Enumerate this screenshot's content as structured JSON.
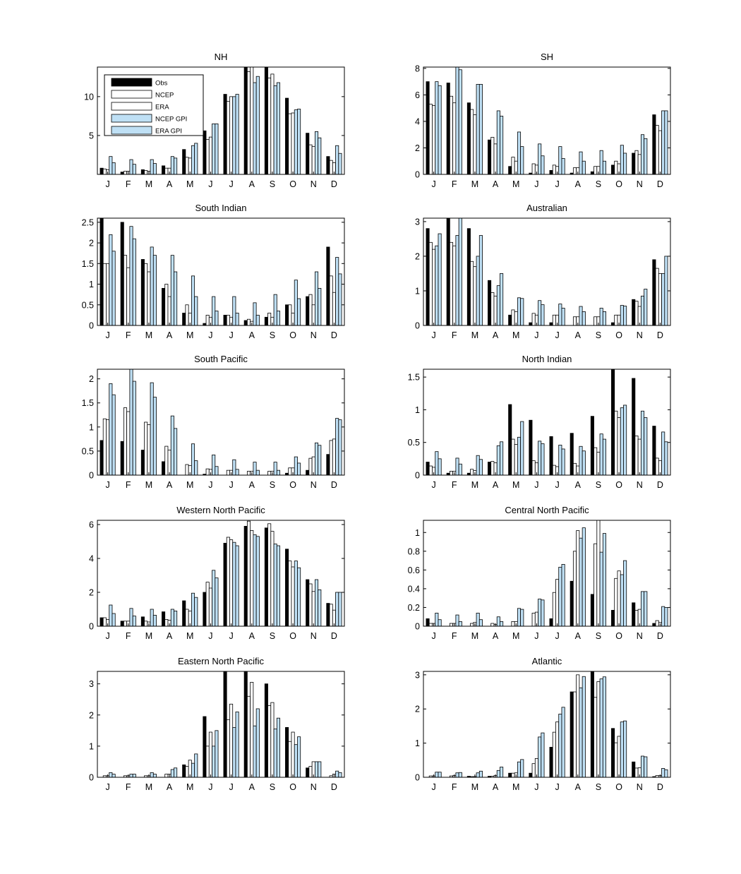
{
  "legend": [
    "Obs",
    "NCEP",
    "ERA",
    "NCEP GPI",
    "ERA GPI"
  ],
  "series_colors": [
    "#000000",
    "#ffffff",
    "#ffffff",
    "#bfe0f5",
    "#bfe0f5"
  ],
  "chart_data": [
    {
      "type": "bar",
      "title": "NH",
      "categories": [
        "J",
        "F",
        "M",
        "A",
        "M",
        "J",
        "J",
        "A",
        "S",
        "O",
        "N",
        "D"
      ],
      "ylim": [
        0,
        13.8
      ],
      "yticks": [
        5,
        10
      ],
      "grid": false,
      "legend_position": "top-left",
      "series": [
        {
          "name": "Obs",
          "values": [
            0.8,
            0.3,
            0.6,
            1.1,
            3.2,
            5.6,
            10.3,
            14.0,
            14.0,
            9.8,
            5.3,
            2.3
          ]
        },
        {
          "name": "NCEP",
          "values": [
            0.7,
            0.4,
            0.5,
            0.8,
            2.2,
            4.5,
            9.4,
            13.2,
            12.4,
            7.8,
            3.8,
            1.8
          ]
        },
        {
          "name": "ERA",
          "values": [
            0.6,
            0.4,
            0.4,
            0.8,
            2.1,
            4.8,
            10.0,
            14.0,
            12.9,
            7.9,
            3.6,
            1.5
          ]
        },
        {
          "name": "NCEP GPI",
          "values": [
            2.3,
            1.9,
            1.9,
            2.3,
            3.7,
            6.5,
            10.0,
            11.8,
            11.4,
            8.3,
            5.5,
            3.7
          ]
        },
        {
          "name": "ERA GPI",
          "values": [
            1.5,
            1.3,
            1.4,
            2.1,
            4.0,
            6.5,
            10.3,
            12.6,
            11.8,
            8.4,
            4.7,
            2.7
          ]
        }
      ]
    },
    {
      "type": "bar",
      "title": "SH",
      "categories": [
        "J",
        "F",
        "M",
        "A",
        "M",
        "J",
        "J",
        "A",
        "S",
        "O",
        "N",
        "D"
      ],
      "ylim": [
        0,
        8.1
      ],
      "yticks": [
        0,
        2,
        4,
        6,
        8
      ],
      "grid": false,
      "series": [
        {
          "name": "Obs",
          "values": [
            7.0,
            6.9,
            5.4,
            2.6,
            0.6,
            0.1,
            0.3,
            0.1,
            0.2,
            0.7,
            1.6,
            4.5
          ]
        },
        {
          "name": "NCEP",
          "values": [
            5.3,
            5.9,
            4.9,
            2.8,
            1.3,
            0.8,
            0.7,
            0.5,
            0.6,
            1.0,
            1.8,
            3.7
          ]
        },
        {
          "name": "ERA",
          "values": [
            5.2,
            5.4,
            4.5,
            2.3,
            1.0,
            0.7,
            0.6,
            0.5,
            0.6,
            0.8,
            1.5,
            3.3
          ]
        },
        {
          "name": "NCEP GPI",
          "values": [
            7.0,
            8.1,
            6.8,
            4.8,
            3.2,
            2.3,
            2.1,
            1.7,
            1.8,
            2.2,
            3.0,
            4.8
          ]
        },
        {
          "name": "ERA GPI",
          "values": [
            6.7,
            7.9,
            6.8,
            4.4,
            2.1,
            1.4,
            1.2,
            1.0,
            1.0,
            1.6,
            2.7,
            4.8
          ]
        }
      ]
    },
    {
      "type": "bar",
      "title": "South Indian",
      "categories": [
        "J",
        "F",
        "M",
        "A",
        "M",
        "J",
        "J",
        "A",
        "S",
        "O",
        "N",
        "D"
      ],
      "ylim": [
        0,
        2.6
      ],
      "yticks": [
        0,
        0.5,
        1,
        1.5,
        2,
        2.5
      ],
      "grid": false,
      "series": [
        {
          "name": "Obs",
          "values": [
            2.6,
            2.5,
            1.6,
            0.9,
            0.3,
            0.05,
            0.25,
            0.12,
            0.2,
            0.5,
            0.7,
            1.9
          ]
        },
        {
          "name": "NCEP",
          "values": [
            1.5,
            1.7,
            1.5,
            1.0,
            0.5,
            0.25,
            0.25,
            0.15,
            0.3,
            0.5,
            0.75,
            1.2
          ]
        },
        {
          "name": "ERA",
          "values": [
            1.5,
            1.4,
            1.3,
            0.7,
            0.3,
            0.2,
            0.2,
            0.1,
            0.2,
            0.3,
            0.5,
            0.8
          ]
        },
        {
          "name": "NCEP GPI",
          "values": [
            2.2,
            2.4,
            1.9,
            1.7,
            1.2,
            0.7,
            0.7,
            0.55,
            0.75,
            1.1,
            1.3,
            1.65
          ]
        },
        {
          "name": "ERA GPI",
          "values": [
            1.8,
            2.1,
            1.7,
            1.3,
            0.7,
            0.35,
            0.3,
            0.25,
            0.35,
            0.65,
            0.9,
            1.25
          ]
        }
      ]
    },
    {
      "type": "bar",
      "title": "Australian",
      "categories": [
        "J",
        "F",
        "M",
        "A",
        "M",
        "J",
        "J",
        "A",
        "S",
        "O",
        "N",
        "D"
      ],
      "ylim": [
        0,
        3.1
      ],
      "yticks": [
        0,
        1,
        2,
        3
      ],
      "grid": false,
      "series": [
        {
          "name": "Obs",
          "values": [
            2.8,
            3.1,
            2.8,
            1.3,
            0.3,
            0.08,
            0.08,
            0.0,
            0.0,
            0.08,
            0.75,
            1.9
          ]
        },
        {
          "name": "NCEP",
          "values": [
            2.4,
            2.4,
            1.85,
            0.95,
            0.45,
            0.35,
            0.3,
            0.25,
            0.25,
            0.3,
            0.7,
            1.65
          ]
        },
        {
          "name": "ERA",
          "values": [
            2.2,
            2.3,
            1.7,
            0.85,
            0.4,
            0.3,
            0.3,
            0.25,
            0.25,
            0.3,
            0.55,
            1.5
          ]
        },
        {
          "name": "NCEP GPI",
          "values": [
            2.3,
            2.6,
            2.0,
            1.15,
            0.8,
            0.72,
            0.62,
            0.55,
            0.5,
            0.58,
            0.85,
            1.5
          ]
        },
        {
          "name": "ERA GPI",
          "values": [
            2.65,
            3.1,
            2.6,
            1.5,
            0.78,
            0.6,
            0.5,
            0.4,
            0.4,
            0.56,
            1.05,
            2.0
          ]
        }
      ]
    },
    {
      "type": "bar",
      "title": "South Pacific",
      "categories": [
        "J",
        "F",
        "M",
        "A",
        "M",
        "J",
        "J",
        "A",
        "S",
        "O",
        "N",
        "D"
      ],
      "ylim": [
        0,
        2.2
      ],
      "yticks": [
        0,
        0.5,
        1,
        1.5,
        2
      ],
      "grid": false,
      "series": [
        {
          "name": "Obs",
          "values": [
            0.72,
            0.7,
            0.52,
            0.28,
            0.0,
            0.02,
            0.0,
            0.0,
            0.0,
            0.04,
            0.1,
            0.43
          ]
        },
        {
          "name": "NCEP",
          "values": [
            1.17,
            1.4,
            1.1,
            0.6,
            0.22,
            0.13,
            0.1,
            0.08,
            0.08,
            0.15,
            0.35,
            0.72
          ]
        },
        {
          "name": "ERA",
          "values": [
            1.15,
            1.32,
            1.05,
            0.52,
            0.2,
            0.12,
            0.1,
            0.08,
            0.08,
            0.15,
            0.38,
            0.75
          ]
        },
        {
          "name": "NCEP GPI",
          "values": [
            1.9,
            2.2,
            1.92,
            1.23,
            0.65,
            0.42,
            0.32,
            0.27,
            0.27,
            0.38,
            0.67,
            1.18
          ]
        },
        {
          "name": "ERA GPI",
          "values": [
            1.67,
            1.95,
            1.62,
            0.97,
            0.3,
            0.18,
            0.12,
            0.1,
            0.1,
            0.25,
            0.62,
            1.15
          ]
        }
      ]
    },
    {
      "type": "bar",
      "title": "North Indian",
      "categories": [
        "J",
        "F",
        "M",
        "A",
        "M",
        "J",
        "J",
        "A",
        "S",
        "O",
        "N",
        "D"
      ],
      "ylim": [
        0,
        1.62
      ],
      "yticks": [
        0,
        0.5,
        1,
        1.5
      ],
      "grid": false,
      "series": [
        {
          "name": "Obs",
          "values": [
            0.2,
            0.03,
            0.03,
            0.2,
            1.08,
            0.84,
            0.59,
            0.64,
            0.9,
            1.62,
            1.48,
            0.75
          ]
        },
        {
          "name": "NCEP",
          "values": [
            0.14,
            0.06,
            0.09,
            0.21,
            0.55,
            0.22,
            0.15,
            0.18,
            0.42,
            0.98,
            0.6,
            0.26
          ]
        },
        {
          "name": "ERA",
          "values": [
            0.12,
            0.06,
            0.07,
            0.19,
            0.47,
            0.19,
            0.13,
            0.14,
            0.35,
            0.88,
            0.55,
            0.22
          ]
        },
        {
          "name": "NCEP GPI",
          "values": [
            0.36,
            0.26,
            0.3,
            0.45,
            0.58,
            0.52,
            0.46,
            0.44,
            0.63,
            1.03,
            0.98,
            0.66
          ]
        },
        {
          "name": "ERA GPI",
          "values": [
            0.25,
            0.17,
            0.24,
            0.51,
            0.82,
            0.48,
            0.4,
            0.37,
            0.55,
            1.07,
            0.88,
            0.51
          ]
        }
      ]
    },
    {
      "type": "bar",
      "title": "Western North Pacific",
      "categories": [
        "J",
        "F",
        "M",
        "A",
        "M",
        "J",
        "J",
        "A",
        "S",
        "O",
        "N",
        "D"
      ],
      "ylim": [
        0,
        6.25
      ],
      "yticks": [
        0,
        2,
        4,
        6
      ],
      "grid": false,
      "series": [
        {
          "name": "Obs",
          "values": [
            0.5,
            0.3,
            0.55,
            0.85,
            1.5,
            2.0,
            4.9,
            5.9,
            5.8,
            4.55,
            2.75,
            1.35
          ]
        },
        {
          "name": "NCEP",
          "values": [
            0.5,
            0.3,
            0.3,
            0.4,
            1.0,
            2.6,
            5.25,
            6.2,
            6.05,
            3.85,
            2.5,
            1.3
          ]
        },
        {
          "name": "ERA",
          "values": [
            0.4,
            0.3,
            0.25,
            0.35,
            0.9,
            2.25,
            5.1,
            5.65,
            5.6,
            3.5,
            2.05,
            0.95
          ]
        },
        {
          "name": "NCEP GPI",
          "values": [
            1.25,
            1.05,
            1.0,
            1.0,
            1.95,
            3.3,
            4.95,
            5.4,
            4.85,
            3.85,
            2.75,
            2.0
          ]
        },
        {
          "name": "ERA GPI",
          "values": [
            0.75,
            0.6,
            0.65,
            0.9,
            1.7,
            2.85,
            4.75,
            5.3,
            4.75,
            3.45,
            2.15,
            2.0
          ]
        }
      ]
    },
    {
      "type": "bar",
      "title": "Central North Pacific",
      "categories": [
        "J",
        "F",
        "M",
        "A",
        "M",
        "J",
        "J",
        "A",
        "S",
        "O",
        "N",
        "D"
      ],
      "ylim": [
        0,
        1.13
      ],
      "yticks": [
        0,
        0.2,
        0.4,
        0.6,
        0.8,
        1
      ],
      "grid": false,
      "series": [
        {
          "name": "Obs",
          "values": [
            0.08,
            0.0,
            0.0,
            0.0,
            0.0,
            0.0,
            0.08,
            0.48,
            0.34,
            0.17,
            0.25,
            0.03
          ]
        },
        {
          "name": "NCEP",
          "values": [
            0.03,
            0.03,
            0.03,
            0.03,
            0.05,
            0.14,
            0.36,
            0.8,
            0.88,
            0.51,
            0.17,
            0.06
          ]
        },
        {
          "name": "ERA",
          "values": [
            0.03,
            0.03,
            0.04,
            0.02,
            0.05,
            0.15,
            0.5,
            1.02,
            1.13,
            0.59,
            0.18,
            0.04
          ]
        },
        {
          "name": "NCEP GPI",
          "values": [
            0.14,
            0.12,
            0.14,
            0.1,
            0.19,
            0.29,
            0.63,
            0.94,
            0.79,
            0.55,
            0.37,
            0.21
          ]
        },
        {
          "name": "ERA GPI",
          "values": [
            0.07,
            0.05,
            0.07,
            0.05,
            0.18,
            0.28,
            0.66,
            1.05,
            0.99,
            0.7,
            0.37,
            0.2
          ]
        }
      ]
    },
    {
      "type": "bar",
      "title": "Eastern North Pacific",
      "categories": [
        "J",
        "F",
        "M",
        "A",
        "M",
        "J",
        "J",
        "A",
        "S",
        "O",
        "N",
        "D"
      ],
      "ylim": [
        0,
        3.4
      ],
      "yticks": [
        0,
        1,
        2,
        3
      ],
      "grid": false,
      "series": [
        {
          "name": "Obs",
          "values": [
            0.0,
            0.0,
            0.0,
            0.0,
            0.4,
            1.95,
            3.4,
            3.4,
            3.0,
            1.6,
            0.3,
            0.0
          ]
        },
        {
          "name": "NCEP",
          "values": [
            0.05,
            0.05,
            0.05,
            0.1,
            0.35,
            1.0,
            1.85,
            2.6,
            2.3,
            1.15,
            0.35,
            0.05
          ]
        },
        {
          "name": "ERA",
          "values": [
            0.05,
            0.05,
            0.05,
            0.1,
            0.55,
            1.45,
            2.35,
            3.05,
            2.4,
            1.45,
            0.5,
            0.1
          ]
        },
        {
          "name": "NCEP GPI",
          "values": [
            0.15,
            0.1,
            0.15,
            0.25,
            0.45,
            1.0,
            1.6,
            1.65,
            1.55,
            1.05,
            0.5,
            0.2
          ]
        },
        {
          "name": "ERA GPI",
          "values": [
            0.1,
            0.1,
            0.1,
            0.3,
            0.75,
            1.5,
            2.1,
            2.2,
            1.9,
            1.3,
            0.5,
            0.15
          ]
        }
      ]
    },
    {
      "type": "bar",
      "title": "Atlantic",
      "categories": [
        "J",
        "F",
        "M",
        "A",
        "M",
        "J",
        "J",
        "A",
        "S",
        "O",
        "N",
        "D"
      ],
      "ylim": [
        0,
        3.1
      ],
      "yticks": [
        0,
        1,
        2,
        3
      ],
      "grid": false,
      "series": [
        {
          "name": "Obs",
          "values": [
            0.0,
            0.0,
            0.03,
            0.03,
            0.12,
            0.12,
            0.88,
            2.5,
            3.1,
            1.43,
            0.45,
            0.02
          ]
        },
        {
          "name": "NCEP",
          "values": [
            0.04,
            0.04,
            0.02,
            0.03,
            0.12,
            0.4,
            1.32,
            2.5,
            2.34,
            1.01,
            0.27,
            0.05
          ]
        },
        {
          "name": "ERA",
          "values": [
            0.04,
            0.05,
            0.02,
            0.05,
            0.13,
            0.55,
            1.62,
            3.0,
            2.8,
            1.2,
            0.28,
            0.05
          ]
        },
        {
          "name": "NCEP GPI",
          "values": [
            0.15,
            0.13,
            0.13,
            0.2,
            0.45,
            1.18,
            1.85,
            2.62,
            2.88,
            1.62,
            0.62,
            0.26
          ]
        },
        {
          "name": "ERA GPI",
          "values": [
            0.15,
            0.14,
            0.18,
            0.3,
            0.52,
            1.3,
            2.05,
            2.95,
            2.94,
            1.65,
            0.6,
            0.22
          ]
        }
      ]
    }
  ]
}
